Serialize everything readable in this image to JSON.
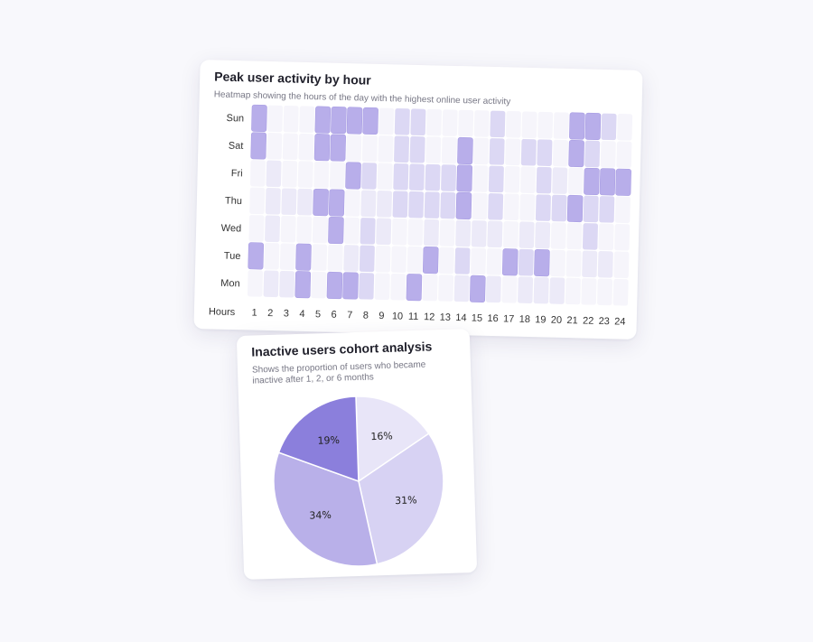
{
  "heatmap": {
    "title": "Peak user activity by hour",
    "subtitle": "Heatmap showing the hours of the day with the highest online user activity",
    "hours_axis_label": "Hours"
  },
  "pie": {
    "title": "Inactive users cohort analysis",
    "subtitle": "Shows the proportion of users who became inactive after 1, 2, or 6 months"
  },
  "colors": {
    "level0": "#f6f5fb",
    "level1": "#eceaf8",
    "level2": "#dcd8f4",
    "level3": "#b8aeea",
    "pie_dark": "#8b7fdc",
    "pie_mid": "#b9b0e9",
    "pie_light": "#d7d2f3",
    "pie_lightest": "#e8e5f8"
  },
  "chart_data": [
    {
      "type": "heatmap",
      "title": "Peak user activity by hour",
      "subtitle": "Heatmap showing the hours of the day with the highest online user activity",
      "xlabel": "Hours",
      "x_categories": [
        "1",
        "2",
        "3",
        "4",
        "5",
        "6",
        "7",
        "8",
        "9",
        "10",
        "11",
        "12",
        "13",
        "14",
        "15",
        "16",
        "17",
        "18",
        "19",
        "20",
        "21",
        "22",
        "23",
        "24"
      ],
      "y_categories": [
        "Sun",
        "Sat",
        "Fri",
        "Thu",
        "Wed",
        "Tue",
        "Mon"
      ],
      "scale": "0 = lowest activity, 3 = highest activity",
      "values": [
        [
          3,
          0,
          0,
          0,
          3,
          3,
          3,
          3,
          0,
          2,
          2,
          0,
          0,
          0,
          0,
          2,
          0,
          0,
          0,
          0,
          3,
          3,
          2,
          0
        ],
        [
          3,
          0,
          0,
          0,
          3,
          3,
          0,
          0,
          0,
          2,
          2,
          0,
          0,
          3,
          0,
          2,
          0,
          2,
          2,
          0,
          3,
          2,
          0,
          0
        ],
        [
          0,
          1,
          0,
          0,
          0,
          0,
          3,
          2,
          0,
          2,
          2,
          2,
          2,
          3,
          0,
          2,
          0,
          0,
          2,
          1,
          0,
          3,
          3,
          3
        ],
        [
          0,
          1,
          1,
          1,
          3,
          3,
          0,
          1,
          1,
          2,
          2,
          2,
          2,
          3,
          0,
          2,
          0,
          0,
          2,
          2,
          3,
          2,
          2,
          0
        ],
        [
          0,
          1,
          0,
          0,
          0,
          3,
          0,
          2,
          1,
          0,
          0,
          1,
          0,
          1,
          1,
          1,
          0,
          1,
          1,
          0,
          0,
          2,
          0,
          0
        ],
        [
          3,
          0,
          0,
          3,
          0,
          0,
          1,
          2,
          0,
          0,
          0,
          3,
          0,
          2,
          0,
          0,
          3,
          2,
          3,
          0,
          0,
          1,
          1,
          0
        ],
        [
          0,
          1,
          1,
          3,
          0,
          3,
          3,
          2,
          0,
          0,
          3,
          0,
          0,
          1,
          3,
          1,
          0,
          1,
          1,
          1,
          0,
          0,
          0,
          0
        ]
      ]
    },
    {
      "type": "pie",
      "title": "Inactive users cohort analysis",
      "subtitle": "Shows the proportion of users who became inactive after 1, 2, or 6 months",
      "slices": [
        {
          "label": "16%",
          "value": 16,
          "color_key": "pie_lightest"
        },
        {
          "label": "31%",
          "value": 31,
          "color_key": "pie_light"
        },
        {
          "label": "34%",
          "value": 34,
          "color_key": "pie_mid"
        },
        {
          "label": "19%",
          "value": 19,
          "color_key": "pie_dark"
        }
      ]
    }
  ]
}
